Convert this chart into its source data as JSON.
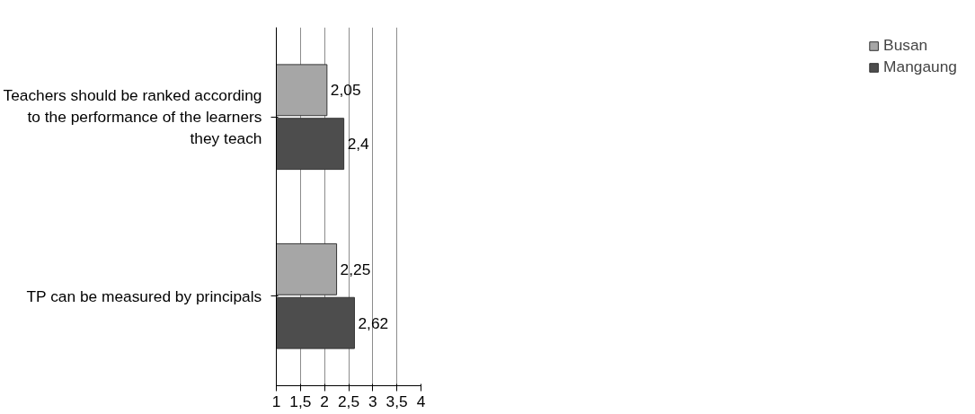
{
  "chart_data": {
    "type": "bar",
    "orientation": "horizontal",
    "categories": [
      "Teachers should be ranked according to the performance of the learners they teach",
      "TP can be measured by principals"
    ],
    "series": [
      {
        "name": "Busan",
        "color": "#a6a6a6",
        "values": [
          2.05,
          2.25
        ],
        "value_labels": [
          "2,05",
          "2,25"
        ]
      },
      {
        "name": "Mangaung",
        "color": "#4d4d4d",
        "values": [
          2.4,
          2.62
        ],
        "value_labels": [
          "2,4",
          "2,62"
        ]
      }
    ],
    "xlim": [
      1,
      4
    ],
    "xticks": [
      1,
      {
        "value": 1.5,
        "label": "1,5"
      },
      2,
      {
        "value": 2.5,
        "label": "2,5"
      },
      3,
      {
        "value": 3.5,
        "label": "3,5"
      },
      4
    ],
    "grid": "x",
    "legend": "right"
  }
}
